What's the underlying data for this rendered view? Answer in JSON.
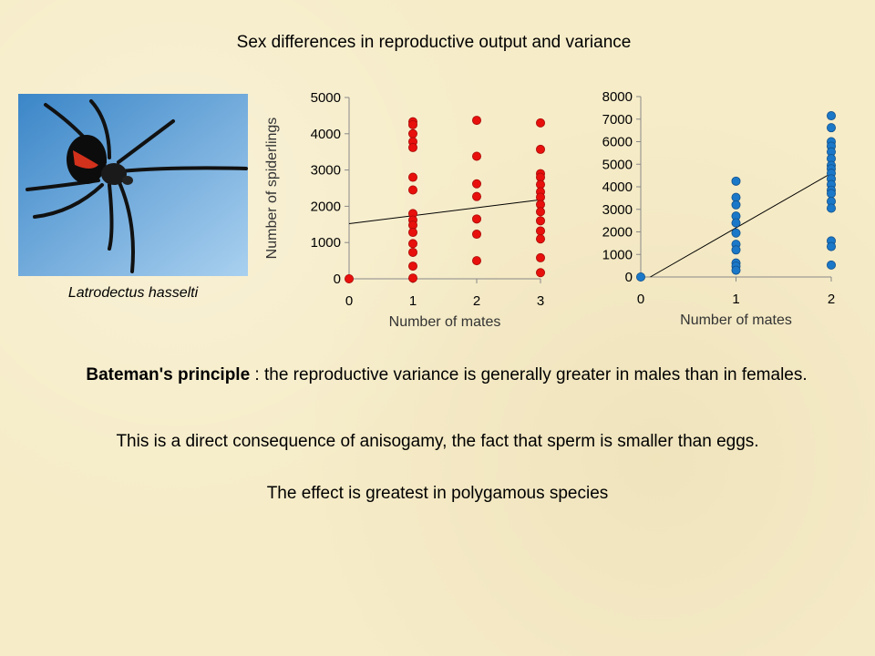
{
  "title": "Sex differences in reproductive output and variance",
  "photo": {
    "caption": "Latrodectus hasselti"
  },
  "bateman": {
    "term": "Bateman's principle",
    "rest": " : the reproductive variance is generally greater in males than in females."
  },
  "anisogamy_text": "This is a direct consequence of anisogamy, the fact that sperm is smaller than eggs.",
  "polygamy_text": "The effect is greatest in polygamous species",
  "colors": {
    "female": "#e8100c",
    "male": "#1b78c8"
  },
  "chart_data": [
    {
      "type": "scatter",
      "xlabel": "Number of mates",
      "ylabel": "Number of spiderlings",
      "xlim": [
        0,
        3
      ],
      "ylim": [
        0,
        5000
      ],
      "xticks": [
        0,
        1,
        2,
        3
      ],
      "yticks": [
        0,
        1000,
        2000,
        3000,
        4000,
        5000
      ],
      "color": "#e8100c",
      "points": [
        [
          0,
          0
        ],
        [
          1,
          4330
        ],
        [
          1,
          4250
        ],
        [
          1,
          4000
        ],
        [
          1,
          3780
        ],
        [
          1,
          3620
        ],
        [
          1,
          2800
        ],
        [
          1,
          2450
        ],
        [
          1,
          1800
        ],
        [
          1,
          1620
        ],
        [
          1,
          1480
        ],
        [
          1,
          1280
        ],
        [
          1,
          970
        ],
        [
          1,
          730
        ],
        [
          1,
          350
        ],
        [
          1,
          20
        ],
        [
          2,
          4370
        ],
        [
          2,
          3380
        ],
        [
          2,
          2620
        ],
        [
          2,
          2270
        ],
        [
          2,
          1650
        ],
        [
          2,
          1230
        ],
        [
          2,
          500
        ],
        [
          3,
          4300
        ],
        [
          3,
          3570
        ],
        [
          3,
          2900
        ],
        [
          3,
          2800
        ],
        [
          3,
          2600
        ],
        [
          3,
          2400
        ],
        [
          3,
          2250
        ],
        [
          3,
          2050
        ],
        [
          3,
          1850
        ],
        [
          3,
          1600
        ],
        [
          3,
          1320
        ],
        [
          3,
          1100
        ],
        [
          3,
          580
        ],
        [
          3,
          170
        ]
      ],
      "trendline": [
        [
          0,
          1520
        ],
        [
          3,
          2180
        ]
      ]
    },
    {
      "type": "scatter",
      "xlabel": "Number of mates",
      "ylabel": "",
      "xlim": [
        0,
        2
      ],
      "ylim": [
        0,
        8000
      ],
      "xticks": [
        0,
        1,
        2
      ],
      "yticks": [
        0,
        1000,
        2000,
        3000,
        4000,
        5000,
        6000,
        7000,
        8000
      ],
      "color": "#1b78c8",
      "points": [
        [
          0,
          0
        ],
        [
          1,
          4250
        ],
        [
          1,
          3530
        ],
        [
          1,
          3200
        ],
        [
          1,
          2700
        ],
        [
          1,
          2400
        ],
        [
          1,
          1950
        ],
        [
          1,
          1450
        ],
        [
          1,
          1200
        ],
        [
          1,
          620
        ],
        [
          1,
          480
        ],
        [
          1,
          300
        ],
        [
          2,
          7150
        ],
        [
          2,
          6620
        ],
        [
          2,
          6000
        ],
        [
          2,
          5800
        ],
        [
          2,
          5550
        ],
        [
          2,
          5250
        ],
        [
          2,
          4950
        ],
        [
          2,
          4800
        ],
        [
          2,
          4600
        ],
        [
          2,
          4350
        ],
        [
          2,
          4100
        ],
        [
          2,
          3850
        ],
        [
          2,
          3700
        ],
        [
          2,
          3350
        ],
        [
          2,
          3050
        ],
        [
          2,
          1600
        ],
        [
          2,
          1350
        ],
        [
          2,
          530
        ]
      ],
      "trendline": [
        [
          0.1,
          0
        ],
        [
          2,
          4600
        ]
      ]
    }
  ]
}
